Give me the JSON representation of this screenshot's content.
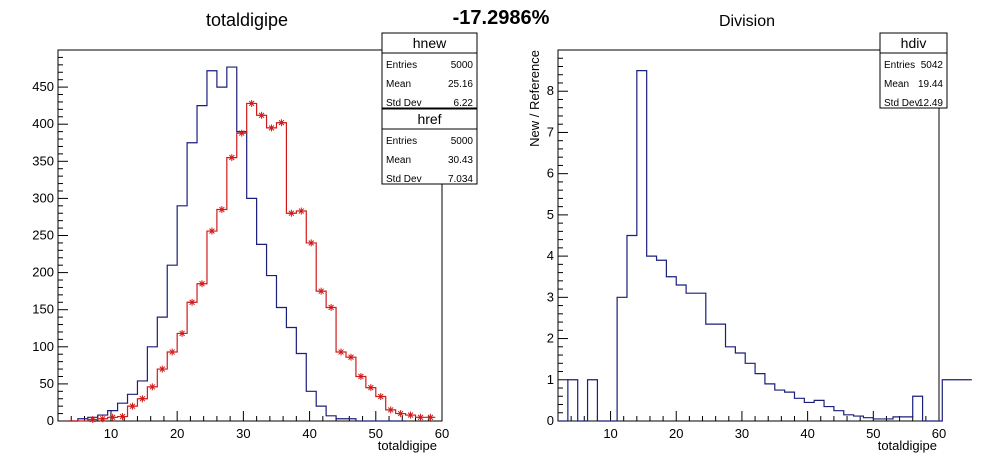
{
  "page_title": "-17.2986%",
  "chart_data": [
    {
      "type": "histogram",
      "title": "totaldigipe",
      "xlabel": "totaldigipe",
      "ylabel": "",
      "xlim": [
        2,
        60
      ],
      "ylim": [
        0,
        500
      ],
      "xticks": [
        10,
        20,
        30,
        40,
        50,
        60
      ],
      "yticks": [
        0,
        50,
        100,
        150,
        200,
        250,
        300,
        350,
        400,
        450
      ],
      "bin_width": 1.5,
      "series": [
        {
          "name": "hnew",
          "color": "#1a1f7a",
          "style": "step",
          "x_start": 3.5,
          "values": [
            0,
            3,
            5,
            8,
            14,
            24,
            36,
            54,
            100,
            140,
            210,
            290,
            375,
            425,
            472,
            450,
            477,
            390,
            300,
            238,
            196,
            153,
            126,
            91,
            40,
            20,
            7,
            3,
            3,
            0,
            0,
            0,
            0,
            0
          ]
        },
        {
          "name": "href",
          "color": "#d11a1a",
          "style": "step+markers",
          "x_start": 3.5,
          "values": [
            0,
            0,
            2,
            3,
            5,
            6,
            20,
            30,
            46,
            70,
            93,
            118,
            160,
            185,
            256,
            285,
            355,
            388,
            428,
            412,
            395,
            402,
            280,
            283,
            240,
            175,
            153,
            93,
            86,
            60,
            45,
            33,
            15,
            10,
            8,
            5,
            5
          ]
        }
      ],
      "stats": [
        {
          "name": "hnew",
          "entries_label": "Entries",
          "entries": "5000",
          "mean_label": "Mean",
          "mean": "25.16",
          "std_label": "Std Dev",
          "std": "6.22"
        },
        {
          "name": "href",
          "entries_label": "Entries",
          "entries": "5000",
          "mean_label": "Mean",
          "mean": "30.43",
          "std_label": "Std Dev",
          "std": "7.034"
        }
      ]
    },
    {
      "type": "histogram",
      "title": "Division",
      "xlabel": "totaldigipe",
      "ylabel": "New / Reference",
      "xlim": [
        2,
        60
      ],
      "ylim": [
        0,
        9
      ],
      "xticks": [
        10,
        20,
        30,
        40,
        50,
        60
      ],
      "yticks": [
        0,
        1,
        2,
        3,
        4,
        5,
        6,
        7,
        8
      ],
      "bin_width": 1.5,
      "series": [
        {
          "name": "hdiv",
          "color": "#1a1f7a",
          "style": "step",
          "x_start": 2,
          "values": [
            0,
            1,
            0,
            1,
            0,
            0,
            3,
            4.5,
            8.5,
            4.0,
            3.9,
            3.5,
            3.3,
            3.1,
            3.1,
            2.35,
            2.35,
            1.8,
            1.65,
            1.4,
            1.15,
            0.9,
            0.75,
            0.7,
            0.55,
            0.45,
            0.5,
            0.35,
            0.25,
            0.15,
            0.12,
            0.08,
            0.05,
            0.05,
            0.1,
            0.1,
            0.6,
            0,
            0,
            1,
            1,
            1
          ]
        }
      ],
      "stats": [
        {
          "name": "hdiv",
          "entries_label": "Entries",
          "entries": "5042",
          "mean_label": "Mean",
          "mean": "19.44",
          "std_label": "Std Dev",
          "std": "12.49"
        }
      ]
    }
  ]
}
